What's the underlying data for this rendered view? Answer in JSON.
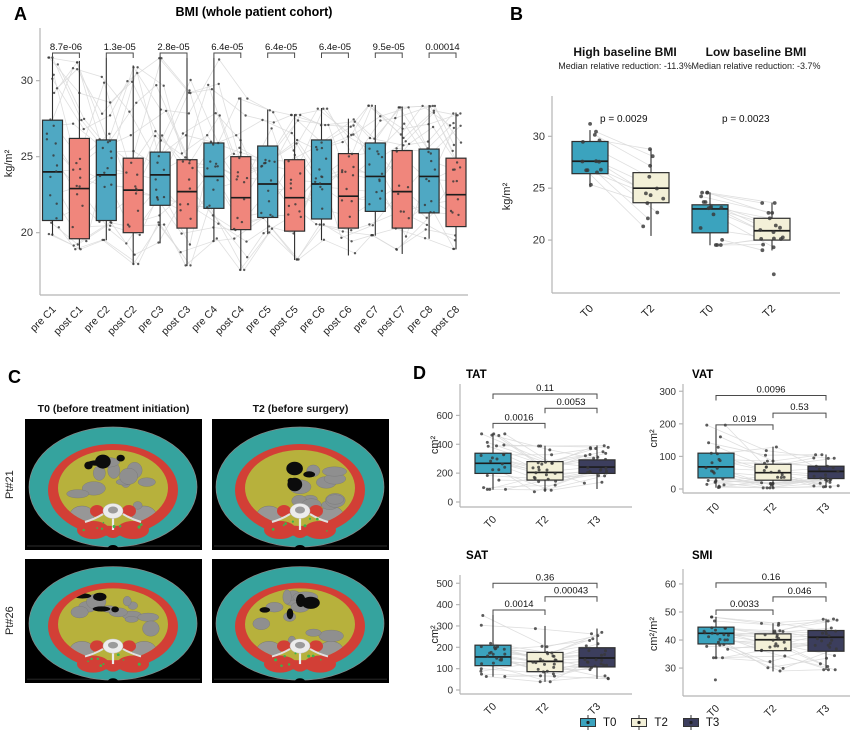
{
  "figure": {
    "panels": {
      "A": {
        "label": "A",
        "title": "BMI (whole patient cohort)",
        "ylabel": "kg/m²"
      },
      "B": {
        "label": "B",
        "ylabel": "kg/m²",
        "subpanels": [
          {
            "title": "High baseline BMI",
            "subtitle": "Median relative reduction: -11.3%",
            "pvalue": "p = 0.0029"
          },
          {
            "title": "Low baseline BMI",
            "subtitle": "Median relative reduction: -3.7%",
            "pvalue": "p = 0.0023"
          }
        ]
      },
      "C": {
        "label": "C",
        "col_titles": [
          "T0 (before treatment initiation)",
          "T2 (before surgery)"
        ],
        "row_labels": [
          "Pt#21",
          "Pt#26"
        ]
      },
      "D": {
        "label": "D",
        "legend": [
          {
            "label": "T0",
            "key": "T0"
          },
          {
            "label": "T2",
            "key": "T2"
          },
          {
            "label": "T3",
            "key": "T3"
          }
        ]
      }
    },
    "palette": {
      "pre": "#4FA8C3",
      "post": "#F0867C",
      "T0": "#3BA3BE",
      "T2": "#F3F0D8",
      "T3": "#3C3E5D",
      "box_stroke": "#2e2e2e",
      "point": "#383838",
      "line": "#d9d9d9",
      "axis": "#b5b5b5",
      "tick_text": "#333333",
      "ct": {
        "background": "#000000",
        "subcutaneous_fat": "#35A39E",
        "muscle": "#D23F36",
        "visceral_fat": "#B7B13C",
        "organs": "#8f8f8f",
        "air": "#0c0c0c",
        "bone": "#ececec",
        "intermuscular": "#3CB44B"
      }
    }
  },
  "chart_data": [
    {
      "id": "bmi_cohort",
      "type": "boxplot",
      "title": "BMI (whole patient cohort)",
      "ylabel": "kg/m²",
      "ylim": [
        15.9,
        33.2
      ],
      "yticks": [
        20,
        25,
        30
      ],
      "boxes": [
        {
          "label": "pre C1",
          "group": "pre",
          "whislo": 19.8,
          "q1": 20.8,
          "median": 24.0,
          "q3": 27.4,
          "whishi": 31.6
        },
        {
          "label": "post C1",
          "group": "post",
          "whislo": 18.9,
          "q1": 19.6,
          "median": 22.9,
          "q3": 26.2,
          "whishi": 31.3
        },
        {
          "label": "pre C2",
          "group": "pre",
          "whislo": 19.5,
          "q1": 20.8,
          "median": 23.8,
          "q3": 26.1,
          "whishi": 31.5
        },
        {
          "label": "post C2",
          "group": "post",
          "whislo": 17.9,
          "q1": 20.0,
          "median": 22.8,
          "q3": 24.9,
          "whishi": 31.0
        },
        {
          "label": "pre C3",
          "group": "pre",
          "whislo": 19.3,
          "q1": 21.8,
          "median": 23.8,
          "q3": 25.3,
          "whishi": 31.6
        },
        {
          "label": "post C3",
          "group": "post",
          "whislo": 17.8,
          "q1": 20.3,
          "median": 22.7,
          "q3": 24.8,
          "whishi": 31.5
        },
        {
          "label": "pre C4",
          "group": "pre",
          "whislo": 19.4,
          "q1": 21.6,
          "median": 23.7,
          "q3": 25.9,
          "whishi": 31.5
        },
        {
          "label": "post C4",
          "group": "post",
          "whislo": 17.5,
          "q1": 20.2,
          "median": 22.3,
          "q3": 25.0,
          "whishi": 28.9
        },
        {
          "label": "pre C5",
          "group": "pre",
          "whislo": 19.9,
          "q1": 21.0,
          "median": 23.2,
          "q3": 25.7,
          "whishi": 28.1
        },
        {
          "label": "post C5",
          "group": "post",
          "whislo": 18.2,
          "q1": 20.1,
          "median": 22.3,
          "q3": 24.8,
          "whishi": 27.8
        },
        {
          "label": "pre C6",
          "group": "pre",
          "whislo": 19.5,
          "q1": 20.9,
          "median": 23.2,
          "q3": 26.1,
          "whishi": 28.2
        },
        {
          "label": "post C6",
          "group": "post",
          "whislo": 18.5,
          "q1": 20.3,
          "median": 22.4,
          "q3": 25.2,
          "whishi": 27.5
        },
        {
          "label": "pre C7",
          "group": "pre",
          "whislo": 19.8,
          "q1": 21.4,
          "median": 23.7,
          "q3": 25.9,
          "whishi": 28.4
        },
        {
          "label": "post C7",
          "group": "post",
          "whislo": 18.6,
          "q1": 20.3,
          "median": 22.7,
          "q3": 25.4,
          "whishi": 28.3
        },
        {
          "label": "pre C8",
          "group": "pre",
          "whislo": 19.6,
          "q1": 21.3,
          "median": 23.7,
          "q3": 25.5,
          "whishi": 28.4
        },
        {
          "label": "post C8",
          "group": "post",
          "whislo": 18.9,
          "q1": 20.4,
          "median": 22.5,
          "q3": 24.9,
          "whishi": 27.9
        }
      ],
      "comparisons": [
        {
          "a": 0,
          "b": 1,
          "p": "8.7e-06"
        },
        {
          "a": 2,
          "b": 3,
          "p": "1.3e-05"
        },
        {
          "a": 4,
          "b": 5,
          "p": "2.8e-05"
        },
        {
          "a": 6,
          "b": 7,
          "p": "6.4e-05"
        },
        {
          "a": 8,
          "b": 9,
          "p": "6.4e-05"
        },
        {
          "a": 10,
          "b": 11,
          "p": "6.4e-05"
        },
        {
          "a": 12,
          "b": 13,
          "p": "9.5e-05"
        },
        {
          "a": 14,
          "b": 15,
          "p": "0.00014"
        }
      ]
    },
    {
      "id": "bmi_subgroups",
      "type": "boxplot",
      "title": "High vs Low baseline BMI",
      "ylabel": "kg/m²",
      "ylim": [
        14.9,
        33.5
      ],
      "yticks": [
        20,
        25,
        30
      ],
      "boxes": [
        {
          "label": "T0",
          "group": "T0",
          "whislo": 25.1,
          "q1": 26.4,
          "median": 27.6,
          "q3": 29.5,
          "whishi": 30.6,
          "outliers": [
            31.2
          ]
        },
        {
          "label": "T2",
          "group": "T2",
          "whislo": 20.4,
          "q1": 23.6,
          "median": 25.0,
          "q3": 26.5,
          "whishi": 28.8
        },
        {
          "label": "T0",
          "group": "T0",
          "whislo": 19.5,
          "q1": 20.7,
          "median": 23.0,
          "q3": 23.4,
          "whishi": 24.6
        },
        {
          "label": "T2",
          "group": "T2",
          "whislo": 19.0,
          "q1": 20.0,
          "median": 20.9,
          "q3": 22.1,
          "whishi": 23.6,
          "outliers": [
            16.7
          ]
        }
      ],
      "comparisons": []
    },
    {
      "id": "tat",
      "type": "boxplot",
      "title": "TAT",
      "ylabel": "cm²",
      "ylim": [
        0,
        790
      ],
      "yticks": [
        0,
        200,
        400,
        600
      ],
      "boxes": [
        {
          "label": "T0",
          "group": "T0",
          "whislo": 85,
          "q1": 198,
          "median": 268,
          "q3": 338,
          "whishi": 475
        },
        {
          "label": "T2",
          "group": "T2",
          "whislo": 70,
          "q1": 152,
          "median": 205,
          "q3": 280,
          "whishi": 390
        },
        {
          "label": "T3",
          "group": "T3",
          "whislo": 90,
          "q1": 198,
          "median": 242,
          "q3": 292,
          "whishi": 392
        }
      ],
      "comparisons": [
        {
          "a": 0,
          "b": 1,
          "p": "0.0016",
          "y": 545
        },
        {
          "a": 1,
          "b": 2,
          "p": "0.0053",
          "y": 650
        },
        {
          "a": 0,
          "b": 2,
          "p": "0.11",
          "y": 748
        }
      ]
    },
    {
      "id": "vat",
      "type": "boxplot",
      "title": "VAT",
      "ylabel": "cm²",
      "ylim": [
        0,
        310
      ],
      "yticks": [
        0,
        100,
        200,
        300
      ],
      "boxes": [
        {
          "label": "T0",
          "group": "T0",
          "whislo": 4,
          "q1": 34,
          "median": 68,
          "q3": 110,
          "whishi": 198
        },
        {
          "label": "T2",
          "group": "T2",
          "whislo": 3,
          "q1": 27,
          "median": 50,
          "q3": 76,
          "whishi": 130
        },
        {
          "label": "T3",
          "group": "T3",
          "whislo": 6,
          "q1": 32,
          "median": 54,
          "q3": 70,
          "whishi": 106
        }
      ],
      "comparisons": [
        {
          "a": 0,
          "b": 1,
          "p": "0.019",
          "y": 197
        },
        {
          "a": 1,
          "b": 2,
          "p": "0.53",
          "y": 233
        },
        {
          "a": 0,
          "b": 2,
          "p": "0.0096",
          "y": 287
        }
      ]
    },
    {
      "id": "sat",
      "type": "boxplot",
      "title": "SAT",
      "ylabel": "cm²",
      "ylim": [
        0,
        520
      ],
      "yticks": [
        0,
        100,
        200,
        300,
        400,
        500
      ],
      "boxes": [
        {
          "label": "T0",
          "group": "T0",
          "whislo": 62,
          "q1": 114,
          "median": 155,
          "q3": 210,
          "whishi": 352
        },
        {
          "label": "T2",
          "group": "T2",
          "whislo": 38,
          "q1": 86,
          "median": 134,
          "q3": 176,
          "whishi": 300
        },
        {
          "label": "T3",
          "group": "T3",
          "whislo": 52,
          "q1": 108,
          "median": 150,
          "q3": 198,
          "whishi": 288
        }
      ],
      "comparisons": [
        {
          "a": 0,
          "b": 1,
          "p": "0.0014",
          "y": 375
        },
        {
          "a": 1,
          "b": 2,
          "p": "0.00043",
          "y": 437
        },
        {
          "a": 0,
          "b": 2,
          "p": "0.36",
          "y": 500
        }
      ]
    },
    {
      "id": "smi",
      "type": "boxplot",
      "title": "SMI",
      "ylabel": "cm²/m²",
      "ylim": [
        20.4,
        63.9
      ],
      "yticks": [
        30,
        40,
        50,
        60
      ],
      "boxes": [
        {
          "label": "T0",
          "group": "T0",
          "whislo": 33.6,
          "q1": 38.6,
          "median": 42.4,
          "q3": 44.6,
          "whishi": 48.3,
          "outliers": [
            25.8
          ]
        },
        {
          "label": "T2",
          "group": "T2",
          "whislo": 28.8,
          "q1": 36.2,
          "median": 40.1,
          "q3": 42.2,
          "whishi": 46.0
        },
        {
          "label": "T3",
          "group": "T3",
          "whislo": 29.3,
          "q1": 36.0,
          "median": 41.0,
          "q3": 43.4,
          "whishi": 47.6
        }
      ],
      "comparisons": [
        {
          "a": 0,
          "b": 1,
          "p": "0.0033",
          "y": 50.7
        },
        {
          "a": 1,
          "b": 2,
          "p": "0.046",
          "y": 55.4
        },
        {
          "a": 0,
          "b": 2,
          "p": "0.16",
          "y": 60.4
        }
      ]
    }
  ]
}
